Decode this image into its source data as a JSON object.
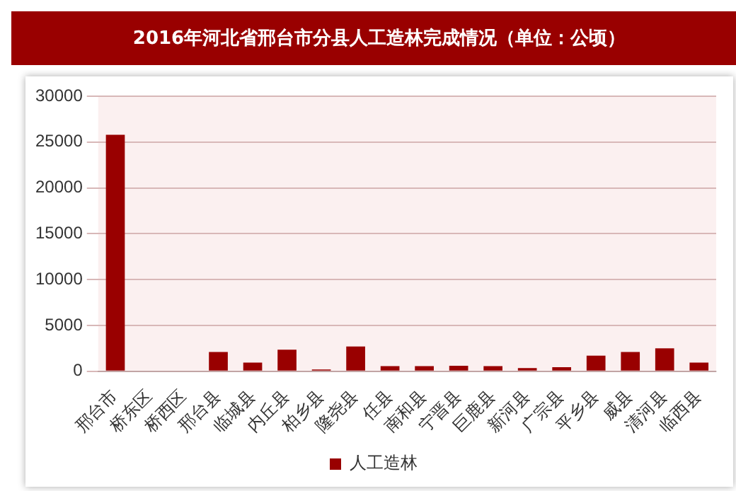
{
  "chart_data": {
    "type": "bar",
    "title": "2016年河北省邢台市分县人工造林完成情况（单位：公顷）",
    "categories": [
      "邢台市",
      "桥东区",
      "桥西区",
      "邢台县",
      "临城县",
      "内丘县",
      "柏乡县",
      "隆尧县",
      "任县",
      "南和县",
      "宁晋县",
      "巨鹿县",
      "新河县",
      "广宗县",
      "平乡县",
      "威县",
      "清河县",
      "临西县"
    ],
    "series": [
      {
        "name": "人工造林",
        "color": "#990000",
        "values": [
          25800,
          0,
          0,
          2100,
          950,
          2350,
          200,
          2700,
          550,
          550,
          600,
          550,
          350,
          450,
          1700,
          2100,
          2500,
          950
        ]
      }
    ],
    "ylim": [
      0,
      30000
    ],
    "yticks": [
      0,
      5000,
      10000,
      15000,
      20000,
      25000,
      30000
    ],
    "grid": "y",
    "legend": "bottom"
  }
}
